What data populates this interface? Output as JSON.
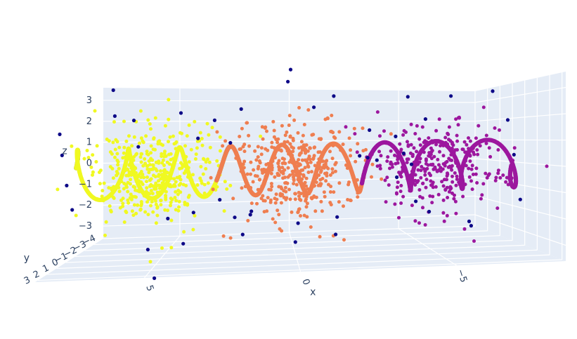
{
  "chart_data": {
    "type": "scatter",
    "projection": "3d",
    "axes": {
      "x": {
        "label": "x",
        "ticks": [
          "5",
          "0",
          "−5"
        ],
        "tick_values": [
          5,
          0,
          -5
        ],
        "range": [
          -8.5,
          8.5
        ]
      },
      "y": {
        "label": "y",
        "ticks": [
          "3",
          "2",
          "1",
          "0",
          "−1",
          "−2",
          "−3",
          "−4"
        ],
        "tick_values": [
          3,
          2,
          1,
          0,
          -1,
          -2,
          -3,
          -4
        ],
        "range": [
          -4,
          3.3
        ]
      },
      "z": {
        "label": "z",
        "ticks": [
          "3",
          "2",
          "1",
          "0",
          "−1",
          "−2",
          "−3"
        ],
        "tick_values": [
          3,
          2,
          1,
          0,
          -1,
          -2,
          -3
        ],
        "range": [
          -3.6,
          3.6
        ]
      }
    },
    "grid": true,
    "background": "#e5ecf6",
    "colors": {
      "outlier": "#0d0887",
      "yellow": "#f0f921",
      "orange": "#ef7e50",
      "purple": "#9c179e"
    },
    "series": [
      {
        "color_key": "yellow",
        "helix_x_range": [
          2.6,
          8.5
        ],
        "cloud_center_x": 5.2,
        "cloud_points": 420
      },
      {
        "color_key": "orange",
        "helix_x_range": [
          -3,
          3
        ],
        "cloud_center_x": 0,
        "cloud_points": 420
      },
      {
        "color_key": "purple",
        "helix_x_range": [
          -8.5,
          -2.6
        ],
        "cloud_center_x": -5.2,
        "cloud_points": 320
      }
    ],
    "helix": {
      "amplitude": 1.1,
      "period": 1.9
    },
    "outliers": [
      [
        7.2,
        -1.6,
        3.5
      ],
      [
        6.1,
        -0.5,
        2.2
      ],
      [
        4.1,
        1.0,
        2.5
      ],
      [
        3.2,
        -2.2,
        2.1
      ],
      [
        7.6,
        -3.0,
        2.3
      ],
      [
        8.2,
        1.6,
        1.8
      ],
      [
        8.0,
        2.0,
        1.0
      ],
      [
        7.9,
        1.8,
        -0.2
      ],
      [
        7.8,
        1.5,
        -1.2
      ],
      [
        4.5,
        -2.2,
        -3.5
      ],
      [
        4.8,
        2.5,
        -3.8
      ],
      [
        2.8,
        0.0,
        -1.2
      ],
      [
        1.6,
        1.5,
        -1.5
      ],
      [
        3.4,
        2.0,
        1.5
      ],
      [
        2.0,
        0.2,
        2.6
      ],
      [
        0.2,
        0.5,
        4.2
      ],
      [
        0.3,
        0.5,
        3.7
      ],
      [
        -0.6,
        1.0,
        2.6
      ],
      [
        -1.5,
        -0.6,
        3.1
      ],
      [
        -2.6,
        0.8,
        1.6
      ],
      [
        -2.1,
        1.8,
        0.6
      ],
      [
        -3.0,
        -1.6,
        0.3
      ],
      [
        -0.1,
        0.0,
        -2.3
      ],
      [
        0.0,
        0.0,
        -3.1
      ],
      [
        -1.4,
        1.2,
        -1.9
      ],
      [
        -1.6,
        -0.8,
        -3.0
      ],
      [
        -3.3,
        -1.3,
        0.2
      ],
      [
        1.7,
        -1.3,
        -2.1
      ],
      [
        2.2,
        1.0,
        -1.8
      ],
      [
        1.9,
        1.6,
        -2.4
      ],
      [
        4.0,
        -1.7,
        -2.0
      ],
      [
        -4.6,
        0.8,
        2.0
      ],
      [
        -5.3,
        1.5,
        2.9
      ],
      [
        -4.7,
        -1.9,
        3.1
      ],
      [
        -7.0,
        0.8,
        3.1
      ],
      [
        -5.9,
        -2.8,
        -2.5
      ],
      [
        -6.0,
        1.5,
        -2.4
      ],
      [
        -7.7,
        1.5,
        -1.4
      ],
      [
        -6.9,
        -1.2,
        -2.7
      ],
      [
        -7.8,
        0.7,
        0.4
      ],
      [
        -8.0,
        -0.3,
        1.9
      ],
      [
        -3.6,
        0.5,
        1.3
      ],
      [
        -3.6,
        0.7,
        -0.4
      ],
      [
        -3.8,
        0.9,
        0.6
      ],
      [
        -4.2,
        0.4,
        0.1
      ],
      [
        -4.6,
        -0.5,
        -1.6
      ],
      [
        5.2,
        1.4,
        -2.9
      ],
      [
        2.5,
        -1.5,
        1.1
      ],
      [
        6.8,
        -3.7,
        0.8
      ],
      [
        4.9,
        -1.0,
        -2.1
      ]
    ]
  }
}
